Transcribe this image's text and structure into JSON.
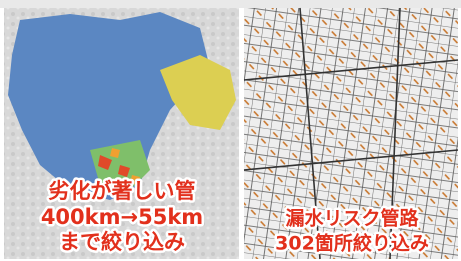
{
  "left_panel": {
    "lines": [
      "劣化が著しい管",
      "400km→55km",
      "まで絞り込み"
    ]
  },
  "right_panel": {
    "lines": [
      "漏水リスク管路",
      "302箇所絞り込み"
    ]
  }
}
